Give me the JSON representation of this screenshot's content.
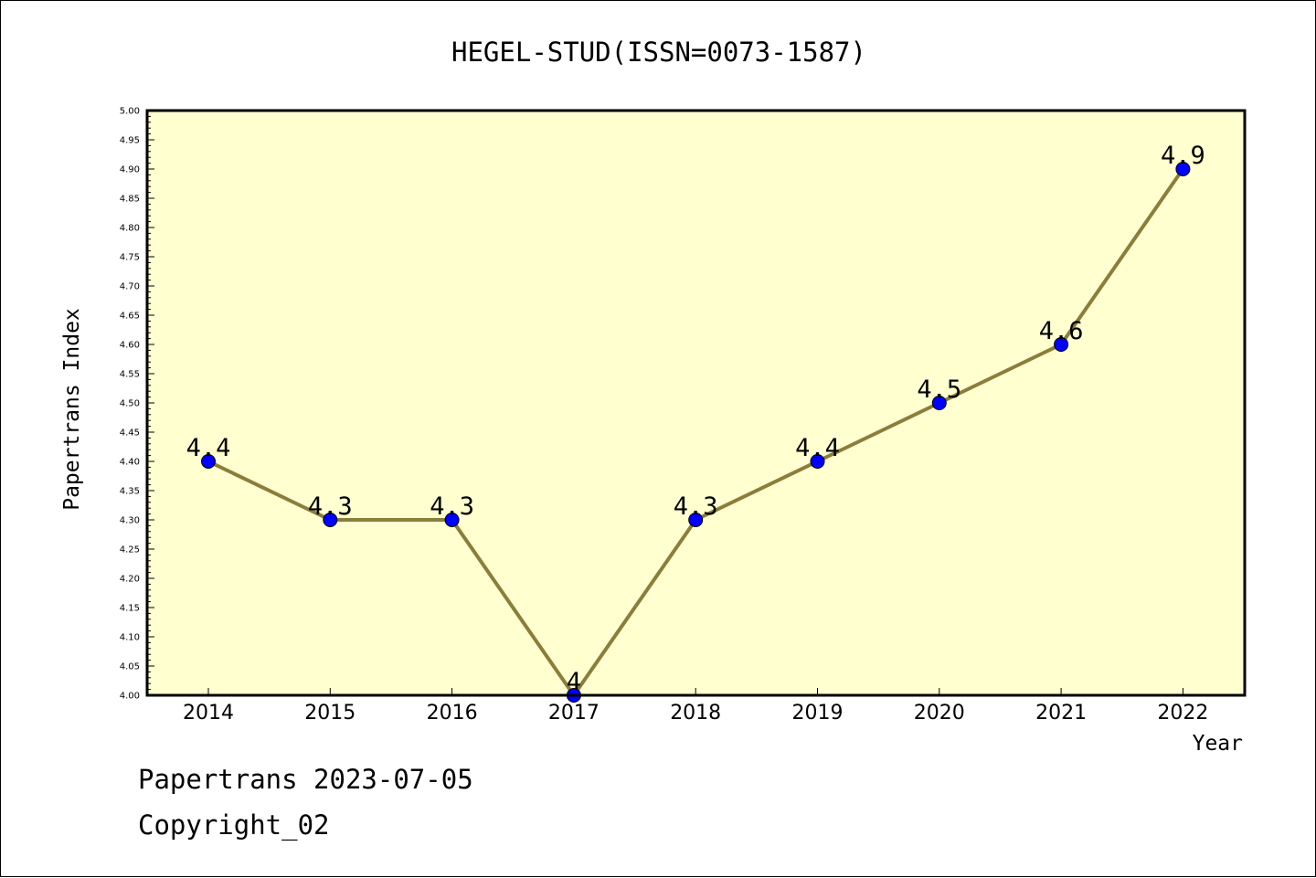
{
  "chart_data": {
    "type": "line",
    "title": "HEGEL-STUD(ISSN=0073-1587)",
    "xlabel": "Year",
    "ylabel": "Papertrans Index",
    "categories": [
      "2014",
      "2015",
      "2016",
      "2017",
      "2018",
      "2019",
      "2020",
      "2021",
      "2022"
    ],
    "series": [
      {
        "values": [
          4.4,
          4.3,
          4.3,
          4.0,
          4.3,
          4.4,
          4.5,
          4.6,
          4.9
        ],
        "data_labels": [
          "4.4",
          "4.3",
          "4.3",
          "4",
          "4.3",
          "4.4",
          "4.5",
          "4.6",
          "4.9"
        ]
      }
    ],
    "ylim": [
      4.0,
      5.0
    ],
    "yticks": [
      "4.00",
      "4.05",
      "4.10",
      "4.15",
      "4.20",
      "4.25",
      "4.30",
      "4.35",
      "4.40",
      "4.45",
      "4.50",
      "4.55",
      "4.60",
      "4.65",
      "4.70",
      "4.75",
      "4.80",
      "4.85",
      "4.90",
      "4.95",
      "5.00"
    ],
    "grid": false,
    "legend": "none",
    "colors": {
      "plot_background": "#ffffd0",
      "line": "#8b7d3a",
      "marker": "#0000ff"
    }
  },
  "footer": {
    "date_text": "Papertrans 2023-07-05",
    "copyright_text": "Copyright_02"
  }
}
